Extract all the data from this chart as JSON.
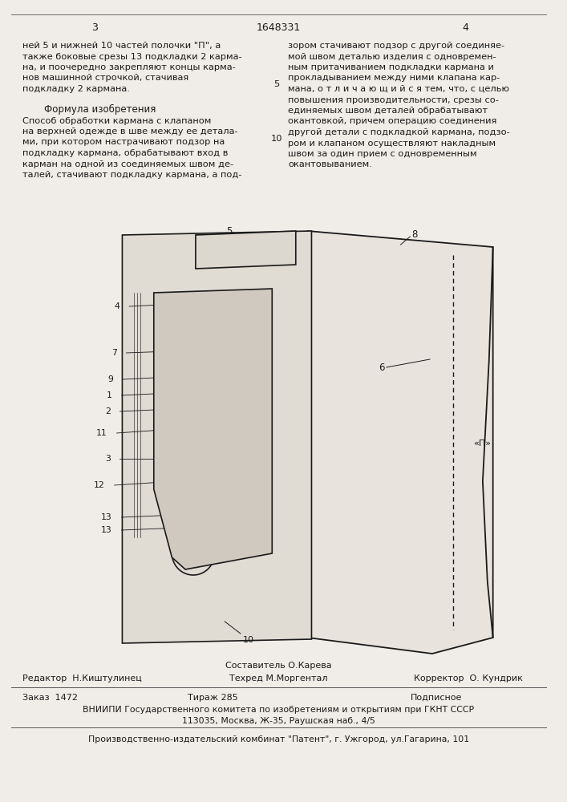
{
  "bg_color": "#f0ede8",
  "page_num_left": "3",
  "page_num_center": "1648331",
  "page_num_right": "4",
  "col_left_text": [
    "ней 5 и нижней 10 частей полочки \"П\", а",
    "также боковые срезы 13 подкладки 2 карма-",
    "на, и поочередно закрепляют концы карма-",
    "нов машинной строчкой, стачивая",
    "подкладку 2 кармана."
  ],
  "formula_title": "Формула изобретения",
  "formula_text": [
    "Способ обработки кармана с клапаном",
    "на верхней одежде в шве между ее детала-",
    "ми, при котором настрачивают подзор на",
    "подкладку кармана, обрабатывают вход в",
    "карман на одной из соединяемых швом де-",
    "талей, стачивают подкладку кармана, а под-"
  ],
  "col_right_text": [
    "зором стачивают подзор с другой соединяе-",
    "мой швом деталью изделия с одновремен-",
    "ным притачиванием подкладки кармана и",
    "прокладыванием между ними клапана кар-",
    "мана, о т л и ч а ю щ и й с я тем, что, с целью",
    "повышения производительности, срезы со-",
    "единяемых швом деталей обрабатывают",
    "окантовкой, причем операцию соединения",
    "другой детали с подкладкой кармана, подзо-",
    "ром и клапаном осуществляют накладным",
    "швом за один прием с одновременным",
    "окантовыванием."
  ],
  "col_right_num": "10",
  "footer_sestavitel": "Составитель О.Карева",
  "footer_redaktor": "Редактор  Н.Киштулинец",
  "footer_tekhred": "Техред М.Моргентал",
  "footer_korrektor": "Корректор  О. Кундрик",
  "footer_zakaz": "Заказ  1472",
  "footer_tirazh": "Тираж 285",
  "footer_podpisnoe": "Подписное",
  "footer_vniiipi": "ВНИИПИ Государственного комитета по изобретениям и открытиям при ГКНТ СССР",
  "footer_address": "113035, Москва, Ж-35, Раушская наб., 4/5",
  "footer_kombinat": "Производственно-издательский комбинат \"Патент\", г. Ужгород, ул.Гагарина, 101"
}
